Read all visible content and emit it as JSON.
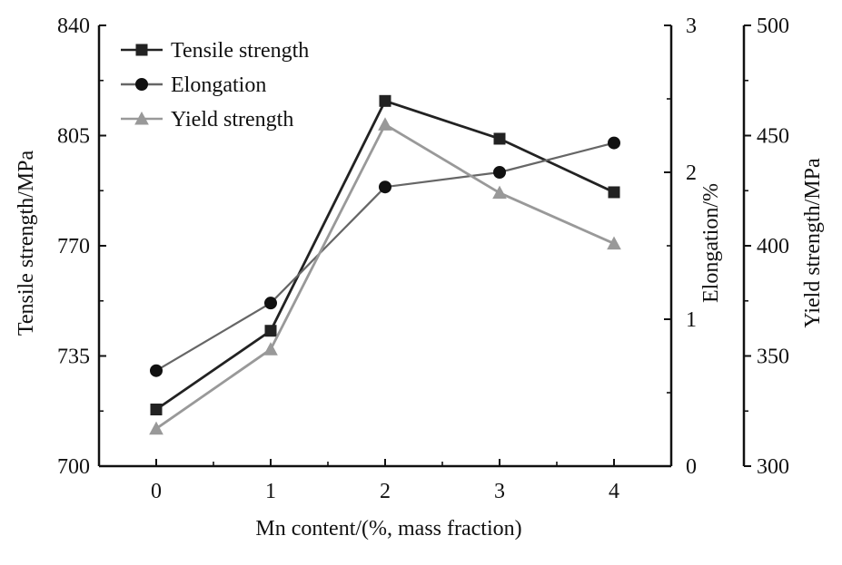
{
  "chart_data": {
    "type": "line",
    "title": "",
    "xlabel": "Mn content/(%, mass fraction)",
    "x": [
      0,
      1,
      2,
      3,
      4
    ],
    "x_ticks": [
      "0",
      "1",
      "2",
      "3",
      "4"
    ],
    "xlim": [
      -0.5,
      4.5
    ],
    "grid": false,
    "legend_position": "top-left",
    "axes": [
      {
        "id": "left",
        "label": "Tensile strength/MPa",
        "ylim": [
          700,
          840
        ],
        "ticks": [
          700,
          735,
          770,
          805,
          840
        ]
      },
      {
        "id": "right1",
        "label": "Elongation/%",
        "ylim": [
          0,
          3
        ],
        "ticks": [
          0,
          1,
          2,
          3
        ]
      },
      {
        "id": "right2",
        "label": "Yield strength/MPa",
        "ylim": [
          300,
          500
        ],
        "ticks": [
          300,
          350,
          400,
          450,
          500
        ]
      }
    ],
    "series": [
      {
        "name": "Tensile strength",
        "axis": "left",
        "marker": "square",
        "color": "#222222",
        "values": [
          718,
          743,
          816,
          804,
          787
        ]
      },
      {
        "name": "Elongation",
        "axis": "right1",
        "marker": "circle",
        "color": "#666666",
        "values": [
          0.65,
          1.11,
          1.9,
          2.0,
          2.2
        ]
      },
      {
        "name": "Yield strength",
        "axis": "right2",
        "marker": "triangle",
        "color": "#999999",
        "values": [
          317,
          353,
          455,
          424,
          401
        ]
      }
    ]
  }
}
